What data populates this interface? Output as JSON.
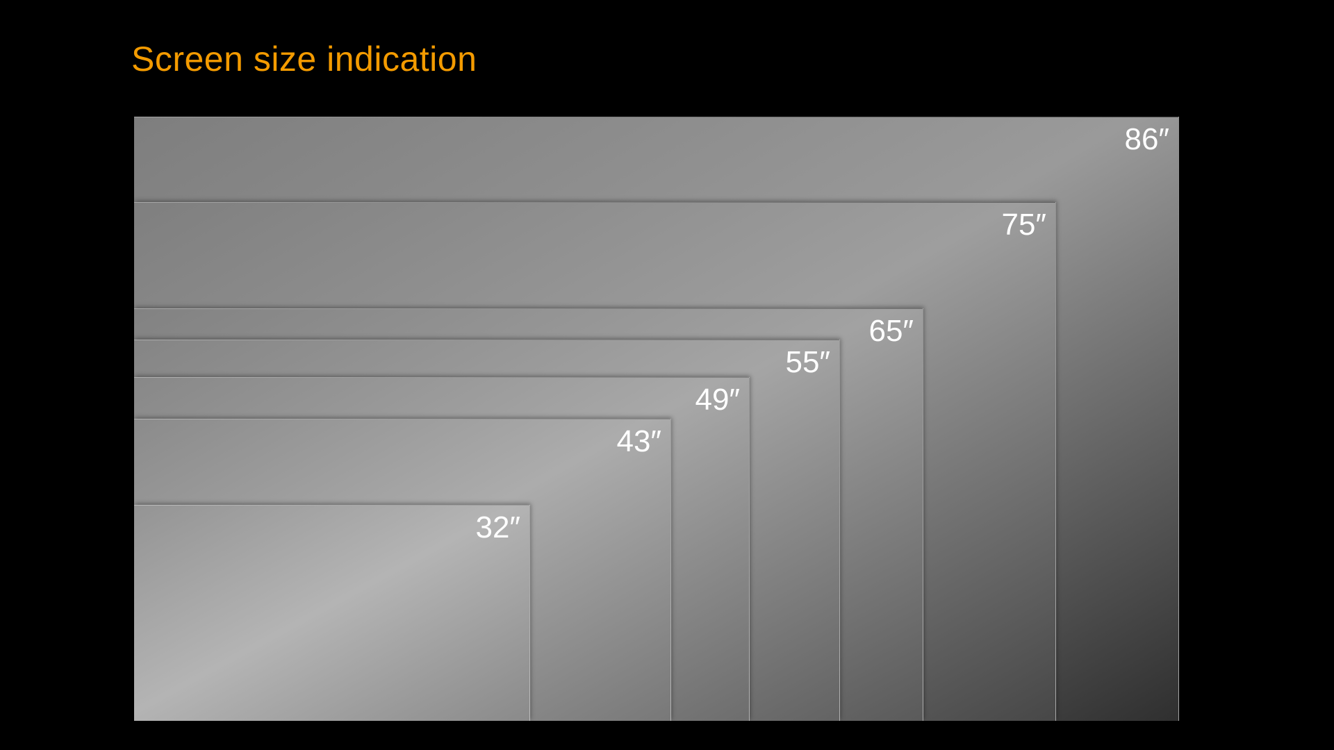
{
  "slide": {
    "title": "Screen size indication"
  },
  "colors": {
    "background": "#000000",
    "title": "#F49B00",
    "label": "#FFFFFF"
  },
  "screens": [
    {
      "label": "86″",
      "diagonal_inches": 86
    },
    {
      "label": "75″",
      "diagonal_inches": 75
    },
    {
      "label": "65″",
      "diagonal_inches": 65
    },
    {
      "label": "55″",
      "diagonal_inches": 55
    },
    {
      "label": "49″",
      "diagonal_inches": 49
    },
    {
      "label": "43″",
      "diagonal_inches": 43
    },
    {
      "label": "32″",
      "diagonal_inches": 32
    }
  ]
}
